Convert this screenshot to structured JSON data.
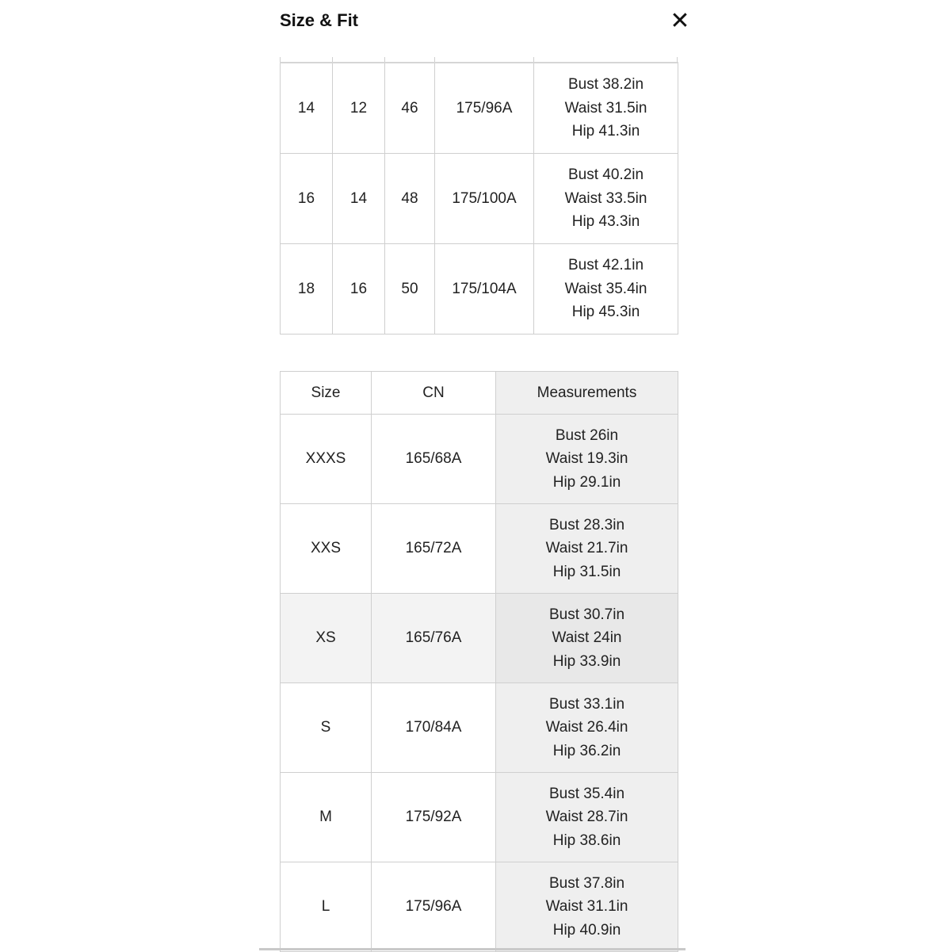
{
  "header": {
    "title": "Size & Fit",
    "close_icon": "close-icon"
  },
  "table_top": {
    "rows": [
      {
        "c1": "14",
        "c2": "12",
        "c3": "46",
        "cn": "175/96A",
        "bust": "Bust 38.2in",
        "waist": "Waist 31.5in",
        "hip": "Hip 41.3in"
      },
      {
        "c1": "16",
        "c2": "14",
        "c3": "48",
        "cn": "175/100A",
        "bust": "Bust 40.2in",
        "waist": "Waist 33.5in",
        "hip": "Hip 43.3in"
      },
      {
        "c1": "18",
        "c2": "16",
        "c3": "50",
        "cn": "175/104A",
        "bust": "Bust 42.1in",
        "waist": "Waist 35.4in",
        "hip": "Hip 45.3in"
      }
    ]
  },
  "table_bottom": {
    "headers": {
      "size": "Size",
      "cn": "CN",
      "measurements": "Measurements"
    },
    "highlighted_row": "XS",
    "rows": [
      {
        "size": "XXXS",
        "cn": "165/68A",
        "bust": "Bust 26in",
        "waist": "Waist 19.3in",
        "hip": "Hip 29.1in"
      },
      {
        "size": "XXS",
        "cn": "165/72A",
        "bust": "Bust 28.3in",
        "waist": "Waist 21.7in",
        "hip": "Hip 31.5in"
      },
      {
        "size": "XS",
        "cn": "165/76A",
        "bust": "Bust 30.7in",
        "waist": "Waist 24in",
        "hip": "Hip 33.9in"
      },
      {
        "size": "S",
        "cn": "170/84A",
        "bust": "Bust 33.1in",
        "waist": "Waist 26.4in",
        "hip": "Hip 36.2in"
      },
      {
        "size": "M",
        "cn": "175/92A",
        "bust": "Bust 35.4in",
        "waist": "Waist 28.7in",
        "hip": "Hip 38.6in"
      },
      {
        "size": "L",
        "cn": "175/96A",
        "bust": "Bust 37.8in",
        "waist": "Waist 31.1in",
        "hip": "Hip 40.9in"
      }
    ]
  }
}
